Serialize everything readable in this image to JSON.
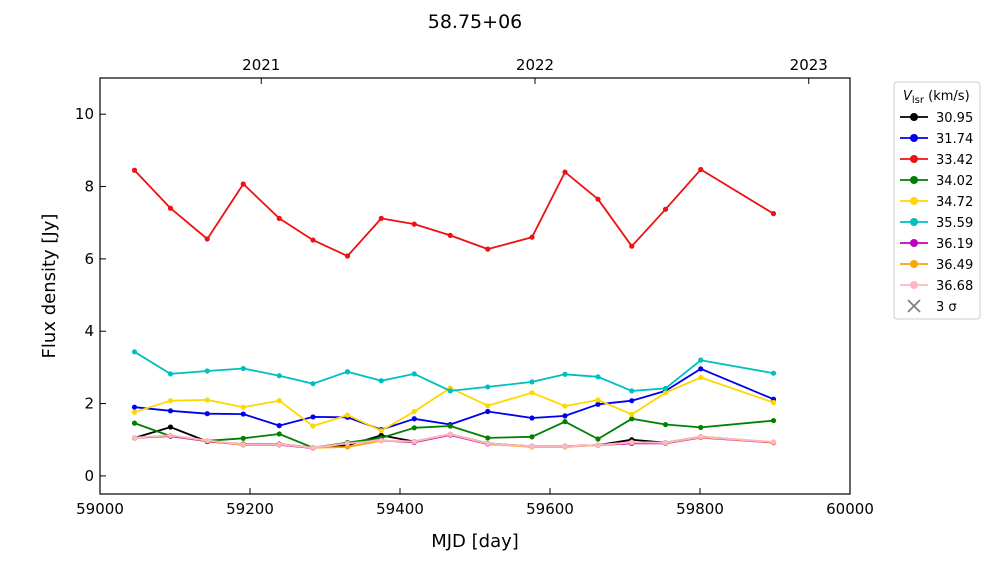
{
  "chart_data": {
    "type": "line",
    "title": "58.75+06",
    "xlabel": "MJD [day]",
    "ylabel": "Flux density [Jy]",
    "xlim": [
      59000,
      60000
    ],
    "ylim": [
      -0.5,
      11
    ],
    "xticks": [
      59000,
      59200,
      59400,
      59600,
      59800,
      60000
    ],
    "yticks": [
      0,
      2,
      4,
      6,
      8,
      10
    ],
    "top_axis": {
      "ticks": [
        {
          "x": 59215,
          "label": "2021"
        },
        {
          "x": 59580,
          "label": "2022"
        },
        {
          "x": 59945,
          "label": "2023"
        }
      ]
    },
    "grid": false,
    "legend": {
      "placement": "outside-right",
      "title_main": "V",
      "title_sub": "lsr",
      "title_units": " (km/s)",
      "sigma_label": "3 σ",
      "sigma_color": "#808080"
    },
    "x": [
      59046,
      59094,
      59143,
      59191,
      59239,
      59284,
      59330,
      59375,
      59419,
      59467,
      59517,
      59576,
      59620,
      59664,
      59709,
      59754,
      59801,
      59898
    ],
    "series": [
      {
        "name": "30.95",
        "color": "#000000",
        "values": [
          1.05,
          1.35,
          0.95,
          0.88,
          0.88,
          0.78,
          0.85,
          1.12,
          0.95,
          1.15,
          0.9,
          0.82,
          0.82,
          0.85,
          1.0,
          0.92,
          1.08,
          0.93
        ]
      },
      {
        "name": "31.74",
        "color": "#0000ee",
        "values": [
          1.9,
          1.8,
          1.72,
          1.71,
          1.39,
          1.63,
          1.62,
          1.28,
          1.58,
          1.42,
          1.78,
          1.6,
          1.66,
          1.98,
          2.08,
          2.35,
          2.96,
          2.12
        ]
      },
      {
        "name": "33.42",
        "color": "#ee1111",
        "values": [
          8.45,
          7.4,
          6.55,
          8.07,
          7.12,
          6.52,
          6.08,
          7.12,
          6.96,
          6.65,
          6.27,
          6.6,
          8.4,
          7.65,
          6.35,
          7.37,
          8.47,
          7.25
        ]
      },
      {
        "name": "34.02",
        "color": "#008000",
        "values": [
          1.46,
          1.1,
          0.97,
          1.04,
          1.16,
          0.78,
          0.92,
          1.05,
          1.33,
          1.38,
          1.05,
          1.08,
          1.5,
          1.02,
          1.58,
          1.42,
          1.34,
          1.53
        ]
      },
      {
        "name": "34.72",
        "color": "#ffd700",
        "values": [
          1.76,
          2.08,
          2.1,
          1.9,
          2.08,
          1.38,
          1.68,
          1.25,
          1.78,
          2.43,
          1.94,
          2.3,
          1.93,
          2.1,
          1.7,
          2.3,
          2.72,
          2.03
        ]
      },
      {
        "name": "35.59",
        "color": "#00bfbf",
        "values": [
          3.43,
          2.82,
          2.9,
          2.97,
          2.77,
          2.55,
          2.88,
          2.63,
          2.82,
          2.35,
          2.46,
          2.6,
          2.81,
          2.74,
          2.35,
          2.42,
          3.2,
          2.84
        ]
      },
      {
        "name": "36.19",
        "color": "#bf00bf",
        "values": [
          1.05,
          1.1,
          0.96,
          0.86,
          0.86,
          0.77,
          0.9,
          0.98,
          0.93,
          1.13,
          0.88,
          0.82,
          0.82,
          0.85,
          0.9,
          0.9,
          1.06,
          0.92
        ]
      },
      {
        "name": "36.49",
        "color": "#ffa500",
        "values": [
          1.05,
          1.12,
          0.97,
          0.86,
          0.87,
          0.78,
          0.8,
          0.97,
          0.95,
          1.15,
          0.89,
          0.8,
          0.8,
          0.85,
          0.93,
          0.91,
          1.07,
          0.93
        ]
      },
      {
        "name": "36.68",
        "color": "#ffb6c1",
        "values": [
          1.06,
          1.12,
          0.98,
          0.87,
          0.87,
          0.78,
          0.9,
          0.98,
          0.95,
          1.15,
          0.9,
          0.82,
          0.82,
          0.85,
          0.93,
          0.92,
          1.08,
          0.94
        ]
      }
    ]
  }
}
